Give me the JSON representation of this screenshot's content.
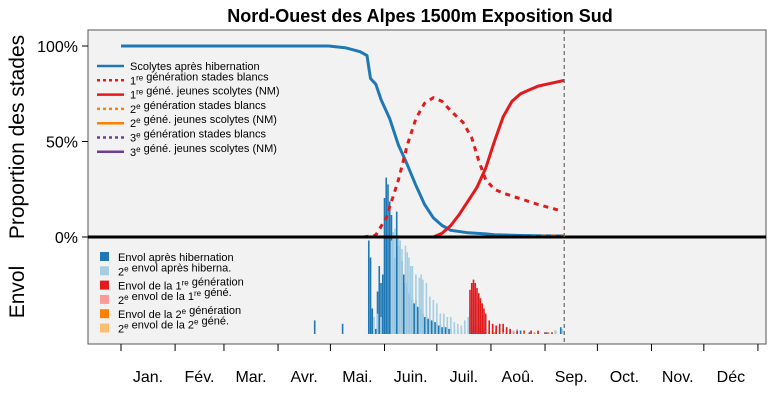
{
  "chart_data": {
    "type": "line",
    "title": "Nord-Ouest des Alpes 1500m Exposition Sud",
    "ylabel_top": "Proportion des stades",
    "ylabel_bottom": "Envol",
    "y_ticks": [
      "100%",
      "50%",
      "0%"
    ],
    "months": [
      "Jan.",
      "Fév.",
      "Mar.",
      "Avr.",
      "Mai.",
      "Juin.",
      "Juil.",
      "Aoû.",
      "Sep.",
      "Oct.",
      "Nov.",
      "Déc"
    ],
    "x_unit": "day_of_year",
    "xlim": [
      1,
      365
    ],
    "ylim_top": [
      0,
      1
    ],
    "current_day_marker": 255,
    "colors": {
      "blue": "#1f78b4",
      "light_blue": "#a6cee3",
      "red": "#e31a1c",
      "pink": "#fb9a99",
      "orange": "#ff7f00",
      "light_orange": "#fdbf6f",
      "purple": "#6a3d9a",
      "panel_bg": "#f2f2f2"
    },
    "legend_lines": [
      {
        "pre": "Scolytes après hibernation",
        "sup": "",
        "post": "",
        "color": "#1f78b4",
        "dash": "solid"
      },
      {
        "pre": "1",
        "sup": "re",
        "post": " génération stades blancs",
        "color": "#e31a1c",
        "dash": "dotted"
      },
      {
        "pre": "1",
        "sup": "re",
        "post": " géné. jeunes scolytes (NM)",
        "color": "#e31a1c",
        "dash": "solid"
      },
      {
        "pre": "2",
        "sup": "e",
        "post": " génération stades blancs",
        "color": "#ff7f00",
        "dash": "dotted"
      },
      {
        "pre": "2",
        "sup": "e",
        "post": " géné. jeunes scolytes (NM)",
        "color": "#ff7f00",
        "dash": "solid"
      },
      {
        "pre": "3",
        "sup": "e",
        "post": " génération stades blancs",
        "color": "#6a3d9a",
        "dash": "dotted"
      },
      {
        "pre": "3",
        "sup": "e",
        "post": " géné. jeunes scolytes (NM)",
        "color": "#6a3d9a",
        "dash": "solid"
      }
    ],
    "legend_bars": [
      {
        "pre": "Envol après hibernation",
        "sup": "",
        "post": "",
        "color": "#1f78b4"
      },
      {
        "pre": "2",
        "sup": "e",
        "post": " envol après hiberna.",
        "color": "#a6cee3"
      },
      {
        "pre": "Envol de la 1",
        "sup": "re",
        "post": " génération",
        "color": "#e31a1c"
      },
      {
        "pre": "2",
        "sup": "e",
        "post": " envol de la 1",
        "sup2": "re",
        "post2": " géné.",
        "color": "#fb9a99"
      },
      {
        "pre": "Envol de la 2",
        "sup": "e",
        "post": " génération",
        "color": "#ff7f00"
      },
      {
        "pre": "2",
        "sup": "e",
        "post": " envol de la 2",
        "sup2": "e",
        "post2": " géné.",
        "color": "#fdbf6f"
      }
    ],
    "series": [
      {
        "name": "Scolytes après hibernation",
        "color": "#1f78b4",
        "dash": "solid",
        "points": [
          [
            1,
            1.0
          ],
          [
            90,
            1.0
          ],
          [
            120,
            1.0
          ],
          [
            130,
            0.99
          ],
          [
            138,
            0.97
          ],
          [
            142,
            0.95
          ],
          [
            144,
            0.83
          ],
          [
            147,
            0.8
          ],
          [
            150,
            0.72
          ],
          [
            155,
            0.62
          ],
          [
            160,
            0.48
          ],
          [
            165,
            0.38
          ],
          [
            170,
            0.27
          ],
          [
            175,
            0.17
          ],
          [
            180,
            0.1
          ],
          [
            185,
            0.06
          ],
          [
            190,
            0.035
          ],
          [
            200,
            0.022
          ],
          [
            210,
            0.016
          ],
          [
            215,
            0.012
          ],
          [
            230,
            0.008
          ],
          [
            245,
            0.006
          ],
          [
            255,
            0.005
          ]
        ]
      },
      {
        "name": "1re génération stades blancs",
        "color": "#e31a1c",
        "dash": "dotted",
        "points": [
          [
            140,
            0.0
          ],
          [
            147,
            0.01
          ],
          [
            153,
            0.1
          ],
          [
            160,
            0.3
          ],
          [
            165,
            0.48
          ],
          [
            170,
            0.62
          ],
          [
            175,
            0.7
          ],
          [
            180,
            0.73
          ],
          [
            185,
            0.71
          ],
          [
            190,
            0.66
          ],
          [
            197,
            0.6
          ],
          [
            202,
            0.52
          ],
          [
            206,
            0.4
          ],
          [
            210,
            0.3
          ],
          [
            215,
            0.25
          ],
          [
            220,
            0.23
          ],
          [
            230,
            0.2
          ],
          [
            240,
            0.17
          ],
          [
            248,
            0.15
          ],
          [
            252,
            0.14
          ]
        ]
      },
      {
        "name": "1re géné. jeunes scolytes (NM)",
        "color": "#e31a1c",
        "dash": "solid",
        "points": [
          [
            1,
            0.0
          ],
          [
            180,
            0.0
          ],
          [
            185,
            0.02
          ],
          [
            190,
            0.06
          ],
          [
            195,
            0.12
          ],
          [
            200,
            0.19
          ],
          [
            205,
            0.26
          ],
          [
            210,
            0.36
          ],
          [
            215,
            0.5
          ],
          [
            220,
            0.63
          ],
          [
            225,
            0.71
          ],
          [
            230,
            0.75
          ],
          [
            235,
            0.77
          ],
          [
            240,
            0.79
          ],
          [
            245,
            0.8
          ],
          [
            250,
            0.81
          ],
          [
            255,
            0.82
          ]
        ]
      },
      {
        "name": "2e génération stades blancs",
        "color": "#ff7f00",
        "dash": "dotted",
        "points": [
          [
            1,
            0.0
          ],
          [
            230,
            0.0
          ],
          [
            245,
            0.005
          ],
          [
            255,
            0.007
          ]
        ]
      },
      {
        "name": "2e géné. jeunes scolytes (NM)",
        "color": "#ff7f00",
        "dash": "solid",
        "points": [
          [
            1,
            0.0
          ],
          [
            255,
            0.0
          ]
        ]
      }
    ],
    "flight_bars": {
      "blue": [
        [
          112,
          0.08
        ],
        [
          128,
          0.06
        ],
        [
          143,
          0.55
        ],
        [
          144,
          0.45
        ],
        [
          145,
          0.15
        ],
        [
          147,
          0.03
        ],
        [
          148,
          0.25
        ],
        [
          149,
          0.4
        ],
        [
          150,
          0.3
        ],
        [
          151,
          0.35
        ],
        [
          152,
          0.8
        ],
        [
          153,
          0.92
        ],
        [
          154,
          0.88
        ],
        [
          155,
          0.78
        ],
        [
          156,
          0.7
        ],
        [
          157,
          0.48
        ],
        [
          158,
          0.45
        ],
        [
          159,
          0.72
        ],
        [
          160,
          0.52
        ],
        [
          161,
          0.42
        ],
        [
          162,
          0.43
        ],
        [
          163,
          0.35
        ],
        [
          164,
          0.3
        ],
        [
          165,
          0.28
        ],
        [
          166,
          0.24
        ],
        [
          167,
          0.22
        ],
        [
          168,
          0.2
        ],
        [
          169,
          0.18
        ],
        [
          170,
          0.2
        ],
        [
          171,
          0.16
        ],
        [
          172,
          0.14
        ],
        [
          173,
          0.15
        ],
        [
          174,
          0.12
        ],
        [
          175,
          0.1
        ],
        [
          176,
          0.11
        ],
        [
          177,
          0.09
        ],
        [
          178,
          0.08
        ],
        [
          179,
          0.08
        ],
        [
          180,
          0.07
        ],
        [
          181,
          0.07
        ],
        [
          182,
          0.06
        ],
        [
          183,
          0.05
        ],
        [
          184,
          0.05
        ],
        [
          185,
          0.04
        ],
        [
          186,
          0.05
        ],
        [
          187,
          0.04
        ],
        [
          188,
          0.04
        ],
        [
          189,
          0.03
        ],
        [
          190,
          0.03
        ],
        [
          192,
          0.03
        ],
        [
          194,
          0.02
        ],
        [
          196,
          0.02
        ],
        [
          198,
          0.03
        ],
        [
          200,
          0.03
        ],
        [
          202,
          0.04
        ],
        [
          203,
          0.05
        ],
        [
          204,
          0.06
        ],
        [
          205,
          0.05
        ],
        [
          206,
          0.06
        ],
        [
          207,
          0.04
        ],
        [
          208,
          0.03
        ],
        [
          209,
          0.03
        ],
        [
          210,
          0.02
        ],
        [
          212,
          0.02
        ],
        [
          214,
          0.02
        ],
        [
          216,
          0.02
        ],
        [
          218,
          0.02
        ],
        [
          220,
          0.03
        ],
        [
          222,
          0.02
        ],
        [
          224,
          0.02
        ],
        [
          226,
          0.02
        ],
        [
          228,
          0.01
        ],
        [
          230,
          0.02
        ],
        [
          232,
          0.01
        ],
        [
          235,
          0.01
        ],
        [
          240,
          0.01
        ],
        [
          245,
          0.01
        ],
        [
          250,
          0.02
        ],
        [
          253,
          0.04
        ]
      ],
      "light_blue": [
        [
          146,
          0.1
        ],
        [
          148,
          0.12
        ],
        [
          150,
          0.1
        ],
        [
          156,
          0.55
        ],
        [
          157,
          0.6
        ],
        [
          158,
          0.62
        ],
        [
          160,
          0.58
        ],
        [
          161,
          0.55
        ],
        [
          162,
          0.5
        ],
        [
          164,
          0.52
        ],
        [
          165,
          0.48
        ],
        [
          166,
          0.45
        ],
        [
          167,
          0.4
        ],
        [
          168,
          0.4
        ],
        [
          170,
          0.35
        ],
        [
          172,
          0.33
        ],
        [
          173,
          0.35
        ],
        [
          174,
          0.32
        ],
        [
          176,
          0.3
        ],
        [
          178,
          0.22
        ],
        [
          180,
          0.2
        ],
        [
          182,
          0.18
        ],
        [
          184,
          0.12
        ],
        [
          186,
          0.12
        ],
        [
          188,
          0.1
        ],
        [
          190,
          0.1
        ],
        [
          192,
          0.07
        ],
        [
          194,
          0.06
        ],
        [
          196,
          0.05
        ],
        [
          198,
          0.08
        ],
        [
          200,
          0.1
        ],
        [
          201,
          0.14
        ],
        [
          202,
          0.18
        ],
        [
          203,
          0.22
        ],
        [
          204,
          0.24
        ],
        [
          205,
          0.22
        ],
        [
          206,
          0.2
        ],
        [
          207,
          0.18
        ],
        [
          208,
          0.15
        ],
        [
          209,
          0.12
        ],
        [
          210,
          0.1
        ],
        [
          212,
          0.07
        ],
        [
          214,
          0.05
        ],
        [
          216,
          0.04
        ],
        [
          218,
          0.05
        ],
        [
          220,
          0.05
        ],
        [
          222,
          0.03
        ],
        [
          224,
          0.03
        ],
        [
          226,
          0.02
        ],
        [
          228,
          0.03
        ],
        [
          232,
          0.02
        ],
        [
          236,
          0.02
        ],
        [
          240,
          0.02
        ],
        [
          244,
          0.01
        ],
        [
          250,
          0.02
        ],
        [
          254,
          0.03
        ]
      ],
      "red": [
        [
          201,
          0.26
        ],
        [
          202,
          0.3
        ],
        [
          203,
          0.32
        ],
        [
          204,
          0.3
        ],
        [
          205,
          0.27
        ],
        [
          206,
          0.24
        ],
        [
          207,
          0.21
        ],
        [
          208,
          0.18
        ],
        [
          209,
          0.15
        ],
        [
          210,
          0.12
        ],
        [
          212,
          0.08
        ],
        [
          214,
          0.06
        ],
        [
          216,
          0.05
        ],
        [
          218,
          0.06
        ],
        [
          220,
          0.06
        ],
        [
          222,
          0.04
        ],
        [
          224,
          0.03
        ],
        [
          228,
          0.02
        ],
        [
          232,
          0.02
        ],
        [
          236,
          0.02
        ],
        [
          240,
          0.02
        ],
        [
          244,
          0.01
        ],
        [
          248,
          0.01
        ]
      ],
      "orange": [
        [
          215,
          0.01
        ],
        [
          220,
          0.01
        ],
        [
          226,
          0.01
        ],
        [
          232,
          0.01
        ],
        [
          238,
          0.01
        ],
        [
          246,
          0.01
        ]
      ]
    }
  }
}
